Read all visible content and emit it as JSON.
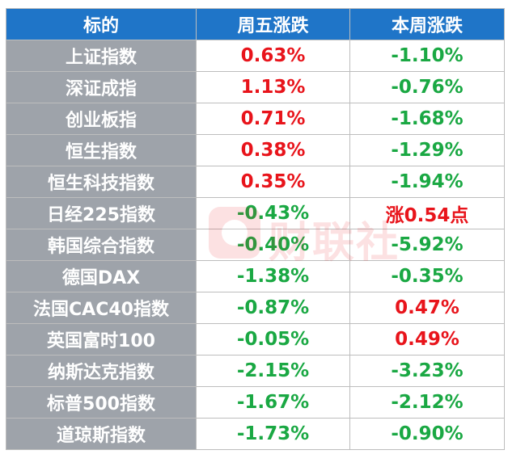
{
  "header": {
    "col_name": "标的",
    "col_friday": "周五涨跌",
    "col_week": "本周涨跌"
  },
  "rows": [
    {
      "name": "上证指数",
      "friday": "0.63%",
      "week": "-1.10%"
    },
    {
      "name": "深证成指",
      "friday": "1.13%",
      "week": "-0.76%"
    },
    {
      "name": "创业板指",
      "friday": "0.71%",
      "week": "-1.68%"
    },
    {
      "name": "恒生指数",
      "friday": "0.38%",
      "week": "-1.29%"
    },
    {
      "name": "恒生科技指数",
      "friday": "0.35%",
      "week": "-1.94%"
    },
    {
      "name": "日经225指数",
      "friday": "-0.43%",
      "week": "涨0.54点"
    },
    {
      "name": "韩国综合指数",
      "friday": "-0.40%",
      "week": "-5.92%"
    },
    {
      "name": "德国DAX",
      "friday": "-1.38%",
      "week": "-0.35%"
    },
    {
      "name": "法国CAC40指数",
      "friday": "-0.87%",
      "week": "0.47%"
    },
    {
      "name": "英国富时100",
      "friday": "-0.05%",
      "week": "0.49%"
    },
    {
      "name": "纳斯达克指数",
      "friday": "-2.15%",
      "week": "-3.23%"
    },
    {
      "name": "标普500指数",
      "friday": "-1.67%",
      "week": "-2.12%"
    },
    {
      "name": "道琼斯指数",
      "friday": "-1.73%",
      "week": "-0.90%"
    }
  ],
  "watermark": {
    "text": "财联社"
  },
  "colors": {
    "up": "#e8141b",
    "down": "#1aa843",
    "header_bg": "#1f75c8",
    "name_bg": "#9ea3aa"
  }
}
